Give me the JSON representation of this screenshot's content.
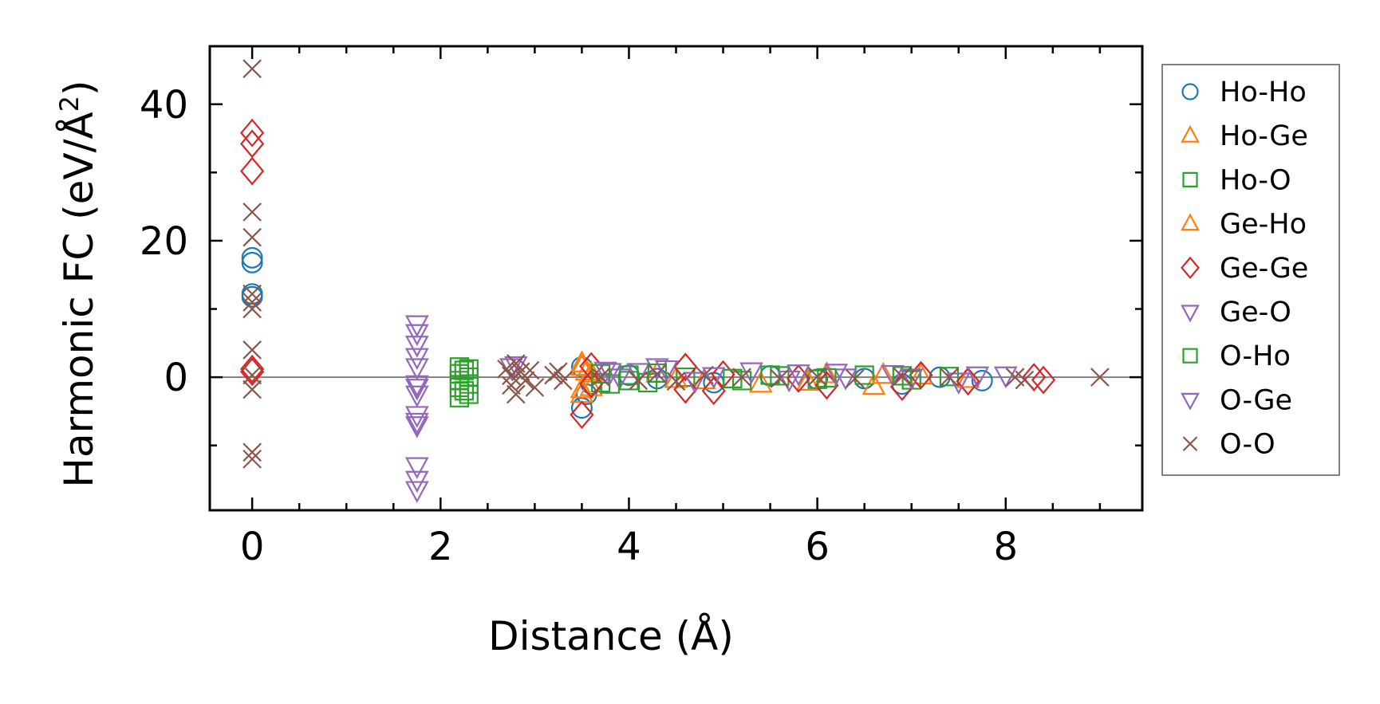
{
  "chart_data": {
    "type": "scatter",
    "xlabel": "Distance (Å)",
    "ylabel_main": "Harmonic FC (eV/Å",
    "ylabel_sup": "2",
    "ylabel_tail": ")",
    "xlim": [
      -0.45,
      9.45
    ],
    "ylim": [
      -19.5,
      48.5
    ],
    "x_ticks": [
      0,
      2,
      4,
      6,
      8
    ],
    "x_tick_labels": [
      "0",
      "2",
      "4",
      "6",
      "8"
    ],
    "x_minor_step": 0.5,
    "y_ticks": [
      0,
      20,
      40
    ],
    "y_tick_labels": [
      "0",
      "20",
      "40"
    ],
    "y_minor_step": 10,
    "zero_line": true,
    "grid": false,
    "legend_position": "outside-right",
    "series": [
      {
        "name": "Ho-Ho",
        "marker": "circle",
        "color": "#1f77b4",
        "points": [
          [
            0,
            17.5
          ],
          [
            0,
            16.8
          ],
          [
            0,
            12.2
          ],
          [
            0,
            11.8
          ],
          [
            3.5,
            1.5
          ],
          [
            3.5,
            -4.5
          ],
          [
            3.55,
            -2.5
          ],
          [
            3.6,
            -1.0
          ],
          [
            4.0,
            0.3
          ],
          [
            4.3,
            -0.2
          ],
          [
            4.9,
            -0.8
          ],
          [
            5.5,
            0.2
          ],
          [
            6.0,
            -0.3
          ],
          [
            6.5,
            -0.2
          ],
          [
            6.9,
            -1.0
          ],
          [
            7.3,
            0.0
          ],
          [
            7.75,
            -0.5
          ]
        ]
      },
      {
        "name": "Ho-Ge",
        "marker": "triangle-up",
        "color": "#ff7f0e",
        "points": [
          [
            3.5,
            2.0
          ],
          [
            3.5,
            -2.5
          ],
          [
            3.55,
            0.8
          ],
          [
            3.6,
            -1.5
          ],
          [
            4.3,
            0.5
          ],
          [
            4.8,
            -0.5
          ],
          [
            5.4,
            -1.0
          ],
          [
            6.1,
            0.4
          ],
          [
            6.6,
            -1.3
          ],
          [
            7.1,
            0.2
          ],
          [
            7.6,
            -0.3
          ]
        ]
      },
      {
        "name": "Ho-O",
        "marker": "square",
        "color": "#2ca02c",
        "points": [
          [
            2.2,
            1.5
          ],
          [
            2.2,
            0.5
          ],
          [
            2.2,
            -0.5
          ],
          [
            2.2,
            -1.5
          ],
          [
            2.2,
            -3.0
          ],
          [
            2.3,
            1.2
          ],
          [
            2.3,
            0.0
          ],
          [
            2.3,
            -1.0
          ],
          [
            2.3,
            -2.5
          ],
          [
            3.7,
            -0.8
          ],
          [
            3.8,
            -1.0
          ],
          [
            4.0,
            0.3
          ],
          [
            4.2,
            -0.8
          ],
          [
            4.6,
            0.0
          ],
          [
            5.2,
            -0.5
          ],
          [
            5.6,
            0.2
          ],
          [
            6.0,
            -0.3
          ],
          [
            6.5,
            0.3
          ],
          [
            7.0,
            -0.4
          ],
          [
            7.4,
            0.1
          ]
        ]
      },
      {
        "name": "Ge-Ho",
        "marker": "triangle-up",
        "color": "#ff7f0e",
        "points": [
          [
            3.5,
            1.5
          ],
          [
            3.5,
            -1.8
          ],
          [
            3.6,
            0.5
          ],
          [
            4.5,
            -0.3
          ],
          [
            5.9,
            -0.7
          ],
          [
            6.7,
            0.3
          ]
        ]
      },
      {
        "name": "Ge-Ge",
        "marker": "diamond",
        "color": "#d62728",
        "points": [
          [
            0,
            35.8
          ],
          [
            0,
            34.2
          ],
          [
            0,
            30.2
          ],
          [
            0,
            1.2
          ],
          [
            0,
            0.8
          ],
          [
            3.5,
            -5.5
          ],
          [
            3.6,
            -1.0
          ],
          [
            3.6,
            1.6
          ],
          [
            4.6,
            1.5
          ],
          [
            4.6,
            -1.8
          ],
          [
            4.9,
            -2.0
          ],
          [
            5.0,
            0.4
          ],
          [
            5.8,
            -0.2
          ],
          [
            6.1,
            -1.2
          ],
          [
            6.9,
            -1.4
          ],
          [
            7.1,
            0.3
          ],
          [
            7.6,
            -0.6
          ],
          [
            8.3,
            0.0
          ],
          [
            8.4,
            -0.4
          ]
        ]
      },
      {
        "name": "Ge-O",
        "marker": "triangle-down",
        "color": "#9467bd",
        "points": [
          [
            1.75,
            7.8
          ],
          [
            1.75,
            4.8
          ],
          [
            1.75,
            3.0
          ],
          [
            1.75,
            1.5
          ],
          [
            1.75,
            -1.5
          ],
          [
            1.75,
            -2.5
          ],
          [
            1.75,
            -5.5
          ],
          [
            1.75,
            -6.5
          ],
          [
            1.75,
            -13.0
          ],
          [
            1.75,
            -15.0
          ],
          [
            1.75,
            -16.5
          ],
          [
            2.8,
            1.8
          ],
          [
            3.75,
            1.0
          ],
          [
            3.9,
            0.0
          ],
          [
            4.1,
            0.8
          ],
          [
            4.3,
            1.5
          ],
          [
            4.7,
            -0.5
          ],
          [
            5.3,
            0.9
          ],
          [
            5.8,
            0.6
          ],
          [
            6.3,
            0.0
          ],
          [
            6.8,
            0.5
          ],
          [
            7.5,
            -0.6
          ],
          [
            8.0,
            0.3
          ]
        ]
      },
      {
        "name": "O-Ho",
        "marker": "square",
        "color": "#2ca02c",
        "points": [
          [
            2.25,
            1.0
          ],
          [
            2.25,
            -2.0
          ],
          [
            3.7,
            0.5
          ],
          [
            4.0,
            -0.5
          ],
          [
            4.3,
            0.6
          ],
          [
            5.1,
            -0.2
          ],
          [
            5.5,
            0.3
          ],
          [
            6.1,
            -0.1
          ],
          [
            6.9,
            0.2
          ]
        ]
      },
      {
        "name": "O-Ge",
        "marker": "triangle-down",
        "color": "#9467bd",
        "points": [
          [
            1.75,
            6.5
          ],
          [
            1.75,
            -1.0
          ],
          [
            1.75,
            -7.0
          ],
          [
            2.75,
            1.5
          ],
          [
            3.8,
            0.8
          ],
          [
            4.4,
            1.2
          ],
          [
            4.9,
            0.2
          ],
          [
            5.7,
            -0.3
          ],
          [
            6.2,
            0.7
          ],
          [
            7.0,
            0.0
          ],
          [
            7.7,
            0.3
          ]
        ]
      },
      {
        "name": "O-O",
        "marker": "x",
        "color": "#8c564b",
        "points": [
          [
            0,
            45.2
          ],
          [
            0,
            24.2
          ],
          [
            0,
            20.5
          ],
          [
            0,
            12.2
          ],
          [
            0,
            11.0
          ],
          [
            0,
            10.0
          ],
          [
            0,
            4.0
          ],
          [
            0,
            0.3
          ],
          [
            0,
            -1.8
          ],
          [
            0,
            -11.0
          ],
          [
            0,
            -12.0
          ],
          [
            2.7,
            1.2
          ],
          [
            2.75,
            0.2
          ],
          [
            2.75,
            -1.2
          ],
          [
            2.8,
            2.0
          ],
          [
            2.8,
            -2.5
          ],
          [
            2.85,
            0.8
          ],
          [
            2.9,
            -0.5
          ],
          [
            2.95,
            1.0
          ],
          [
            3.0,
            -1.5
          ],
          [
            3.2,
            0.3
          ],
          [
            3.3,
            -0.5
          ],
          [
            3.25,
            0.8
          ],
          [
            3.7,
            0.0
          ],
          [
            4.1,
            -0.5
          ],
          [
            4.3,
            0.5
          ],
          [
            4.5,
            -0.6
          ],
          [
            4.8,
            0.3
          ],
          [
            5.2,
            0.0
          ],
          [
            5.6,
            -0.2
          ],
          [
            6.0,
            0.1
          ],
          [
            6.4,
            -0.2
          ],
          [
            6.9,
            0.1
          ],
          [
            7.4,
            0.0
          ],
          [
            8.1,
            0.0
          ],
          [
            8.2,
            -0.4
          ],
          [
            9.0,
            0.0
          ]
        ]
      }
    ]
  }
}
